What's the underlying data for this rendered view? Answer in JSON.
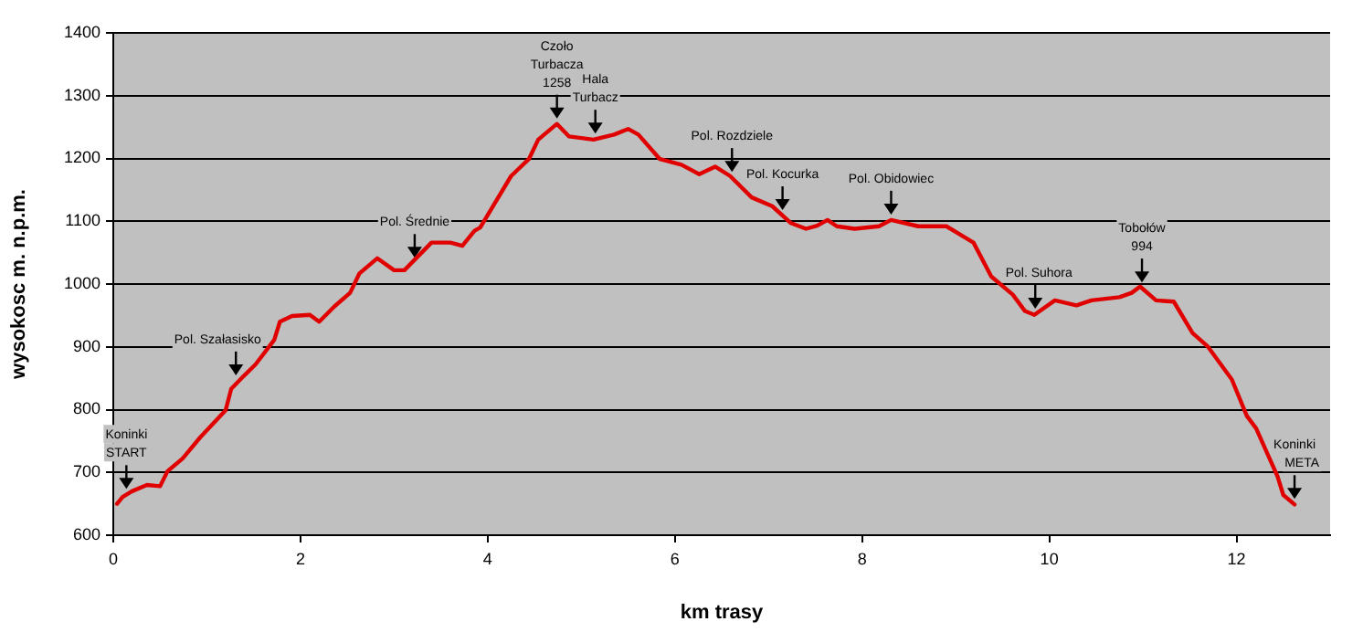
{
  "chart_data": {
    "type": "line",
    "xlabel": "km trasy",
    "ylabel": "wysokosc m. n.p.m.",
    "xlim": [
      0,
      13
    ],
    "xticks": [
      0,
      2,
      4,
      6,
      8,
      10,
      12
    ],
    "ylim": [
      600,
      1400
    ],
    "yticks": [
      600,
      700,
      800,
      900,
      1000,
      1100,
      1200,
      1300,
      1400
    ],
    "grid": "y",
    "legend": false,
    "marker": "none",
    "line_style": "solid",
    "series": [
      {
        "color": "#e00000",
        "x": [
          0.04,
          0.1,
          0.2,
          0.36,
          0.5,
          0.58,
          0.74,
          0.93,
          1.2,
          1.26,
          1.39,
          1.52,
          1.72,
          1.78,
          1.91,
          2.1,
          2.2,
          2.36,
          2.53,
          2.63,
          2.82,
          3.0,
          3.11,
          3.4,
          3.6,
          3.73,
          3.86,
          3.92,
          4.25,
          4.44,
          4.54,
          4.74,
          4.87,
          5.13,
          5.35,
          5.5,
          5.61,
          5.84,
          6.07,
          6.26,
          6.43,
          6.59,
          6.82,
          7.04,
          7.24,
          7.4,
          7.52,
          7.63,
          7.73,
          7.92,
          8.18,
          8.31,
          8.6,
          8.9,
          9.19,
          9.38,
          9.61,
          9.74,
          9.84,
          10.06,
          10.29,
          10.45,
          10.75,
          10.88,
          10.97,
          11.14,
          11.33,
          11.53,
          11.69,
          11.95,
          12.11,
          12.21,
          12.44,
          12.5,
          12.62
        ],
        "values": [
          650,
          661,
          670,
          680,
          678,
          702,
          722,
          756,
          799,
          833,
          853,
          872,
          911,
          940,
          949,
          951,
          940,
          964,
          986,
          1017,
          1041,
          1022,
          1022,
          1066,
          1066,
          1061,
          1085,
          1090,
          1172,
          1199,
          1230,
          1255,
          1235,
          1230,
          1238,
          1247,
          1238,
          1199,
          1190,
          1175,
          1187,
          1172,
          1138,
          1124,
          1097,
          1088,
          1093,
          1102,
          1092,
          1088,
          1092,
          1102,
          1092,
          1092,
          1066,
          1012,
          983,
          957,
          951,
          974,
          966,
          974,
          979,
          986,
          996,
          974,
          972,
          922,
          901,
          848,
          790,
          770,
          693,
          664,
          649
        ]
      }
    ],
    "annotations": [
      {
        "text": "Koninki\nSTART",
        "x": 0.14,
        "y": 665
      },
      {
        "text": "Pol. Szałasisko",
        "x": 1.31,
        "y": 846
      },
      {
        "text": "Pol. Średnie",
        "x": 3.22,
        "y": 1033
      },
      {
        "text": "Czoło\nTurbacza\n1258",
        "x": 4.74,
        "y": 1255
      },
      {
        "text": "Hala\nTurbacz",
        "x": 5.15,
        "y": 1231
      },
      {
        "text": "Pol. Rozdziele",
        "x": 6.61,
        "y": 1170
      },
      {
        "text": "Pol. Kocurka",
        "x": 7.15,
        "y": 1109
      },
      {
        "text": "Pol. Obidowiec",
        "x": 8.31,
        "y": 1102
      },
      {
        "text": "Pol. Suhora",
        "x": 9.85,
        "y": 952
      },
      {
        "text": "Tobołów\n994",
        "x": 10.99,
        "y": 994
      },
      {
        "text": "Koninki\nMETA",
        "x": 12.62,
        "y": 649
      }
    ]
  }
}
